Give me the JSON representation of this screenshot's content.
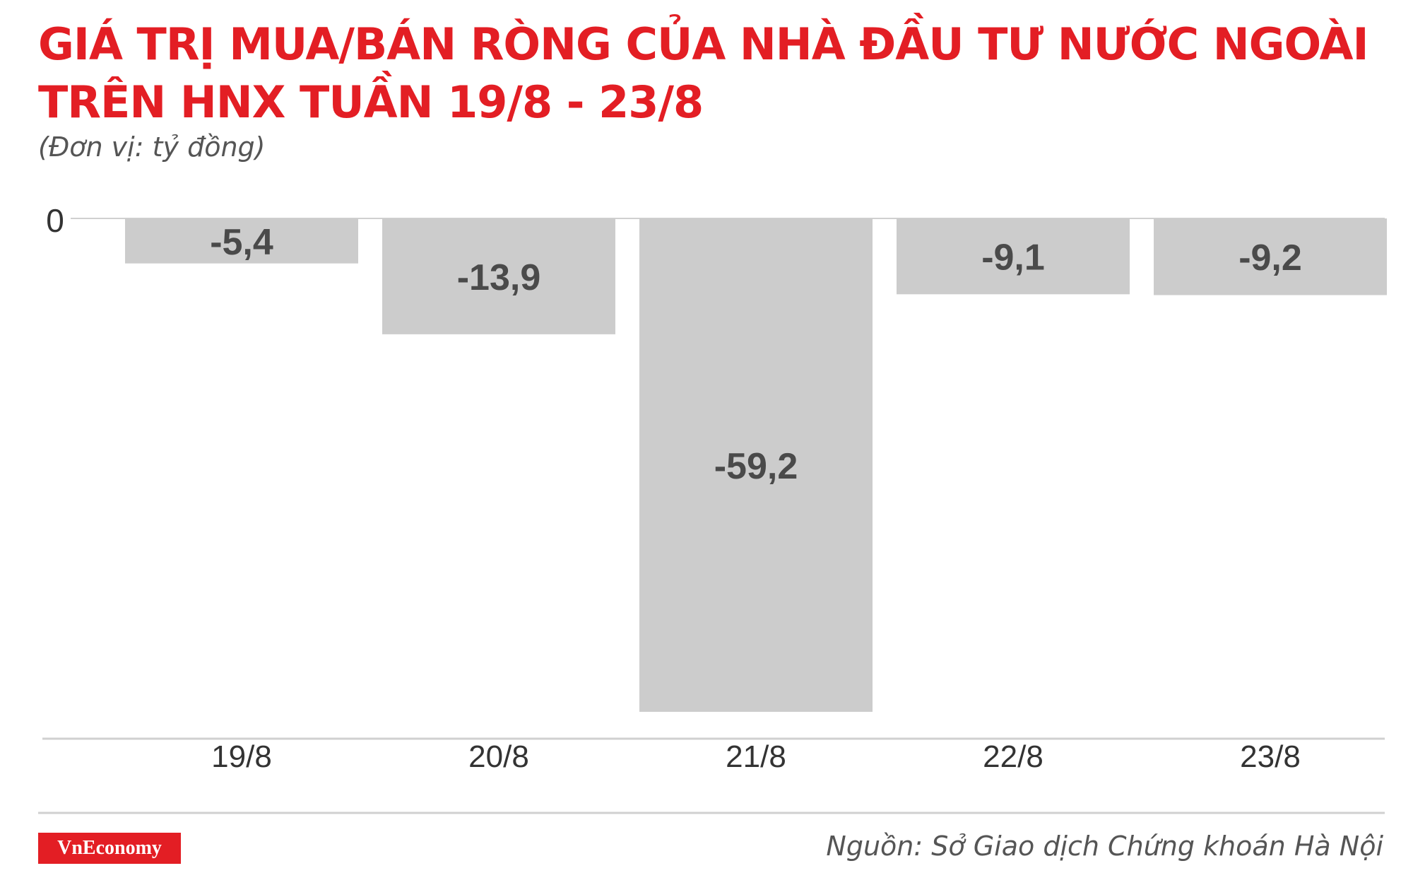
{
  "title": {
    "line1": "GIÁ TRỊ MUA/BÁN RÒNG CỦA NHÀ ĐẦU TƯ NƯỚC NGOÀI",
    "line2": "TRÊN HNX TUẦN 19/8 - 23/8"
  },
  "unit_label": "(Đơn vị: tỷ đồng)",
  "source": "Nguồn: Sở Giao dịch Chứng khoán Hà Nội",
  "logo": "VnEconomy",
  "colors": {
    "title": "#e31e24",
    "bar": "#cccccc",
    "value_label": "#4a4a4a",
    "axis": "#d0d0d0",
    "logo_bg": "#e31e24"
  },
  "chart_data": {
    "type": "bar",
    "categories": [
      "19/8",
      "20/8",
      "21/8",
      "22/8",
      "23/8"
    ],
    "values": [
      -5.4,
      -13.9,
      -59.2,
      -9.1,
      -9.2
    ],
    "value_labels": [
      "-5,4",
      "-13,9",
      "-59,2",
      "-9,1",
      "-9,2"
    ],
    "y_tick_label": "0",
    "ylim": [
      -59.2,
      0
    ],
    "grid": false,
    "legend": "none"
  }
}
